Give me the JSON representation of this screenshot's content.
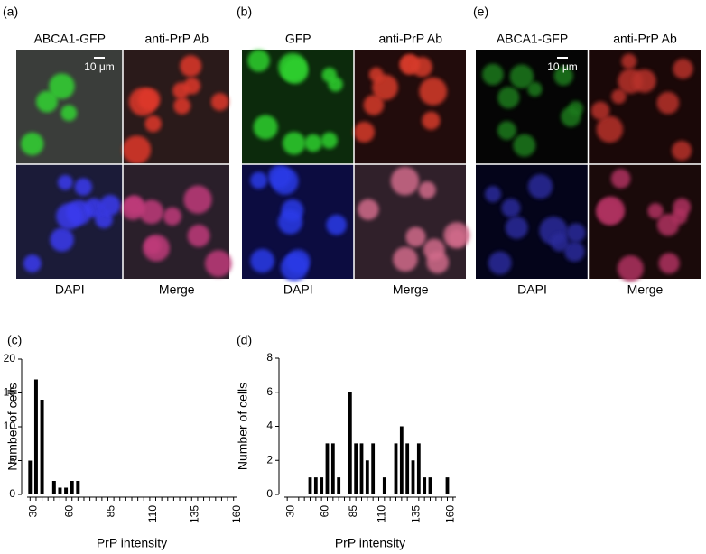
{
  "panels": [
    {
      "letter": "(a)",
      "top_labels": [
        "ABCA1-GFP",
        "anti-PrP Ab"
      ],
      "bottom_labels": [
        "DAPI",
        "Merge"
      ],
      "scale_bar": "10 μm"
    },
    {
      "letter": "(b)",
      "top_labels": [
        "GFP",
        "anti-PrP Ab"
      ],
      "bottom_labels": [
        "DAPI",
        "Merge"
      ]
    },
    {
      "letter": "(e)",
      "top_labels": [
        "ABCA1-GFP",
        "anti-PrP Ab"
      ],
      "bottom_labels": [
        "DAPI",
        "Merge"
      ],
      "scale_bar": "10 μm"
    }
  ],
  "chart_data": [
    {
      "type": "bar",
      "label": "(c)",
      "x_label": "PrP intensity",
      "y_label": "Number of cells",
      "color": "#000000",
      "categories": [
        "30",
        null,
        null,
        null,
        null,
        null,
        "60",
        null,
        null,
        null,
        null,
        null,
        null,
        "85",
        null,
        null,
        null,
        null,
        null,
        null,
        "110",
        null,
        null,
        null,
        null,
        null,
        null,
        "135",
        null,
        null,
        null,
        null,
        null,
        null,
        "160"
      ],
      "values": [
        5,
        17,
        14,
        0,
        2,
        1,
        1,
        2,
        2,
        0,
        0,
        0,
        0,
        0,
        0,
        0,
        0,
        0,
        0,
        0,
        0,
        0,
        0,
        0,
        0,
        0,
        0,
        0,
        0,
        0,
        0,
        0,
        0,
        0,
        0
      ],
      "ylim": [
        0,
        20
      ],
      "yticks": [
        0,
        5,
        10,
        15,
        20
      ]
    },
    {
      "type": "bar",
      "label": "(d)",
      "x_label": "PrP intensity",
      "y_label": "Number of cells",
      "color": "#000000",
      "categories": [
        "30",
        null,
        null,
        null,
        null,
        null,
        "60",
        null,
        null,
        null,
        null,
        "85",
        null,
        null,
        null,
        null,
        "110",
        null,
        null,
        null,
        null,
        null,
        "135",
        null,
        null,
        null,
        null,
        null,
        "160",
        null
      ],
      "values": [
        0,
        0,
        0,
        0,
        1,
        1,
        1,
        3,
        3,
        1,
        0,
        6,
        3,
        3,
        2,
        3,
        0,
        1,
        0,
        3,
        4,
        3,
        2,
        3,
        1,
        1,
        0,
        0,
        1,
        0
      ],
      "ylim": [
        0,
        8
      ],
      "yticks": [
        0,
        2,
        4,
        6,
        8
      ]
    }
  ]
}
